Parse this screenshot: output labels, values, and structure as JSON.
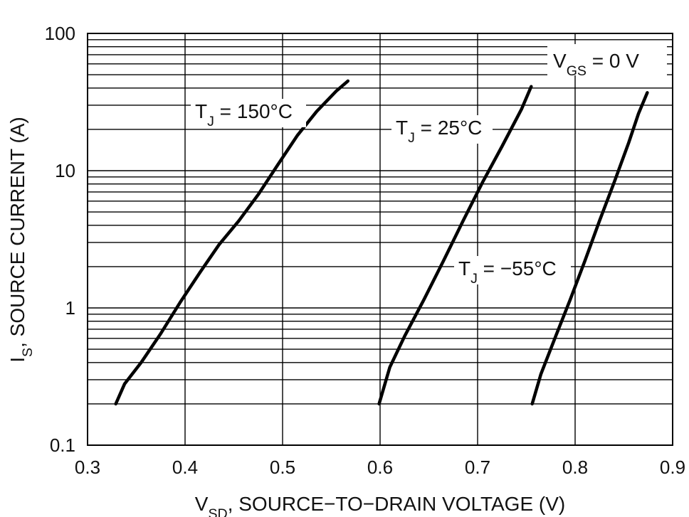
{
  "chart_data": {
    "type": "line",
    "title": "",
    "xlabel": {
      "main": "V",
      "sub": "SD",
      "rest": ", SOURCE−TO−DRAIN VOLTAGE (V)"
    },
    "ylabel": {
      "main": "I",
      "sub": "S",
      "rest": ", SOURCE CURRENT (A)"
    },
    "xlim": [
      0.3,
      0.9
    ],
    "ylim": [
      0.1,
      100
    ],
    "yscale": "log",
    "grid": true,
    "x_ticks": [
      "0.3",
      "0.4",
      "0.5",
      "0.6",
      "0.7",
      "0.8",
      "0.9"
    ],
    "y_ticks": [
      "0.1",
      "1",
      "10",
      "100"
    ],
    "condition_label": {
      "main": "V",
      "sub": "GS",
      "rest": " = 0 V"
    },
    "series": [
      {
        "name": "TJ = 150°C",
        "label": {
          "main": "T",
          "sub": "J",
          "rest": " = 150°C"
        },
        "x": [
          0.329,
          0.338,
          0.355,
          0.375,
          0.395,
          0.415,
          0.435,
          0.455,
          0.475,
          0.495,
          0.515,
          0.535,
          0.555,
          0.567
        ],
        "y": [
          0.2,
          0.28,
          0.4,
          0.65,
          1.1,
          1.8,
          2.9,
          4.3,
          6.7,
          11,
          18,
          27,
          38,
          45
        ]
      },
      {
        "name": "TJ = 25°C",
        "label": {
          "main": "T",
          "sub": "J",
          "rest": " = 25°C"
        },
        "x": [
          0.599,
          0.61,
          0.625,
          0.645,
          0.665,
          0.685,
          0.705,
          0.725,
          0.745,
          0.755
        ],
        "y": [
          0.2,
          0.37,
          0.62,
          1.15,
          2.2,
          4.3,
          8.2,
          15,
          28,
          41
        ]
      },
      {
        "name": "TJ = −55°C",
        "label": {
          "main": "T",
          "sub": "J",
          "rest": " = −55°C"
        },
        "x": [
          0.756,
          0.765,
          0.78,
          0.795,
          0.81,
          0.825,
          0.84,
          0.855,
          0.865,
          0.874
        ],
        "y": [
          0.2,
          0.33,
          0.62,
          1.15,
          2.2,
          4.3,
          8.2,
          16,
          26,
          37
        ]
      }
    ]
  }
}
